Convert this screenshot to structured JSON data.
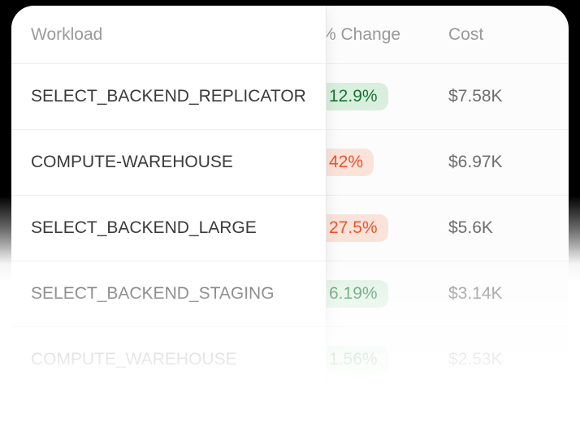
{
  "table": {
    "header": {
      "workload": "Workload",
      "change": "% Change",
      "cost": "Cost"
    },
    "rows": [
      {
        "workload": "SELECT_BACKEND_REPLICATOR",
        "change": "12.9%",
        "trend": "positive",
        "cost": "$7.58K"
      },
      {
        "workload": "COMPUTE-WAREHOUSE",
        "change": "42%",
        "trend": "negative",
        "cost": "$6.97K"
      },
      {
        "workload": "SELECT_BACKEND_LARGE",
        "change": "27.5%",
        "trend": "negative",
        "cost": "$5.6K"
      },
      {
        "workload": "SELECT_BACKEND_STAGING",
        "change": "6.19%",
        "trend": "positive",
        "cost": "$3.14K"
      },
      {
        "workload": "COMPUTE_WAREHOUSE",
        "change": "1.56%",
        "trend": "positive",
        "cost": "$2.53K"
      }
    ],
    "colors": {
      "positive_badge_text": "#1a7334",
      "positive_badge_bg": "#d9efdd",
      "negative_badge_text": "#f4512c",
      "negative_badge_bg": "#fce3da",
      "card_bg": "#ffffff",
      "page_top_bg": "#000000",
      "header_text": "#999999",
      "row_text": "#3a3a3a",
      "cost_text": "#6e6e6e"
    }
  }
}
